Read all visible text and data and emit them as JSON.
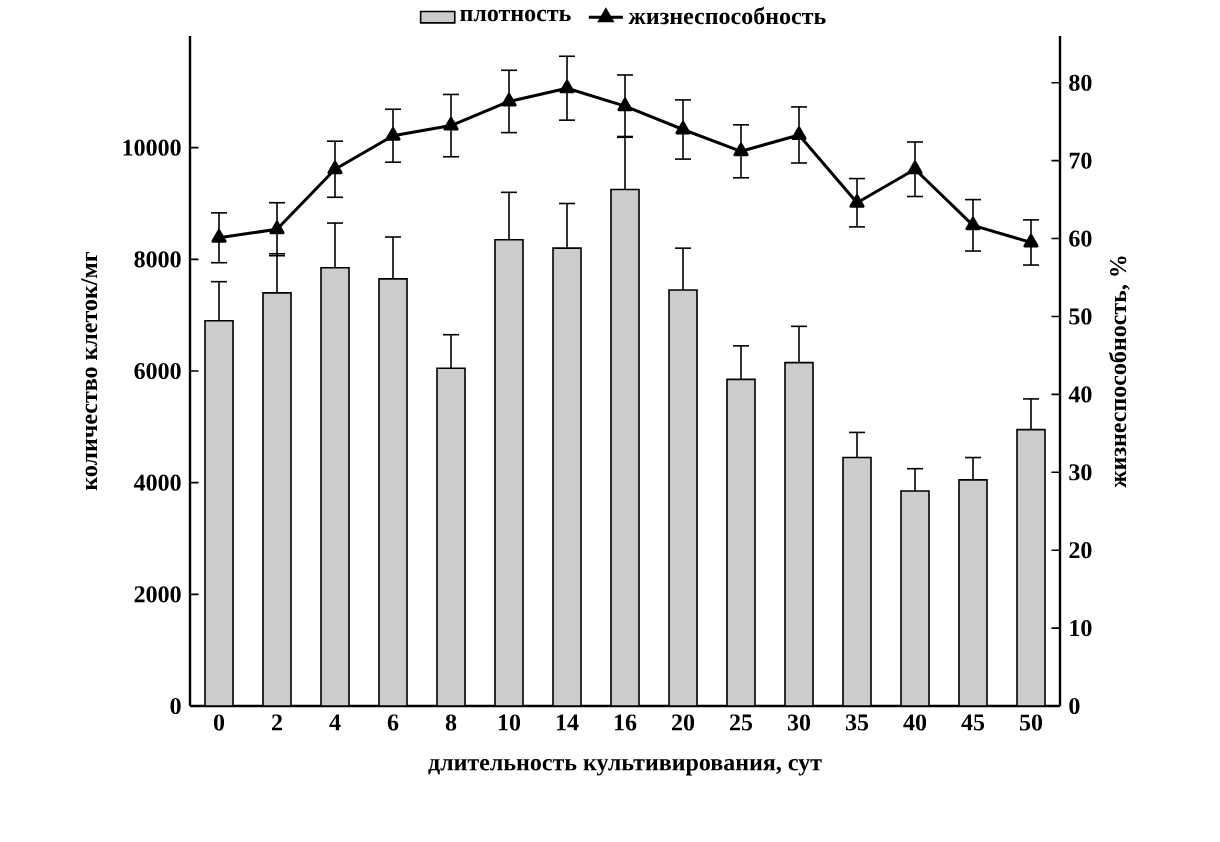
{
  "chart_data": {
    "type": "bar",
    "xlabel": "длительность культивирования, сут",
    "ylabel": "количество клеток/мг",
    "y2label": "жизнеспособность, %",
    "categories": [
      "0",
      "2",
      "4",
      "6",
      "8",
      "10",
      "14",
      "16",
      "20",
      "25",
      "30",
      "35",
      "40",
      "45",
      "50"
    ],
    "series": [
      {
        "name": "плотность",
        "color": "#cccccc",
        "values": [
          6900,
          7400,
          7850,
          7650,
          6050,
          8350,
          8200,
          9250,
          7450,
          5850,
          6150,
          4450,
          3850,
          4050,
          4950
        ],
        "errors": [
          700,
          700,
          800,
          750,
          600,
          850,
          800,
          950,
          750,
          600,
          650,
          450,
          400,
          400,
          550
        ]
      },
      {
        "name": "жизнеспособность",
        "type": "line",
        "axis": "y2",
        "color": "#000000",
        "marker": "triangle",
        "line_style": "solid",
        "values": [
          60.1,
          61.2,
          68.9,
          73.2,
          74.5,
          77.6,
          79.3,
          77.0,
          74.0,
          71.2,
          73.3,
          64.6,
          68.9,
          61.7,
          59.5
        ],
        "errors": [
          3.2,
          3.4,
          3.6,
          3.4,
          4.0,
          4.0,
          4.1,
          4.0,
          3.8,
          3.4,
          3.6,
          3.1,
          3.5,
          3.3,
          2.9
        ]
      }
    ],
    "ylim": [
      0,
      12000
    ],
    "yticks": [
      0,
      2000,
      4000,
      6000,
      8000,
      10000
    ],
    "y2lim": [
      0,
      86
    ],
    "y2ticks": [
      0,
      10,
      20,
      30,
      40,
      50,
      60,
      70,
      80
    ],
    "grid": false,
    "legend": "top"
  }
}
